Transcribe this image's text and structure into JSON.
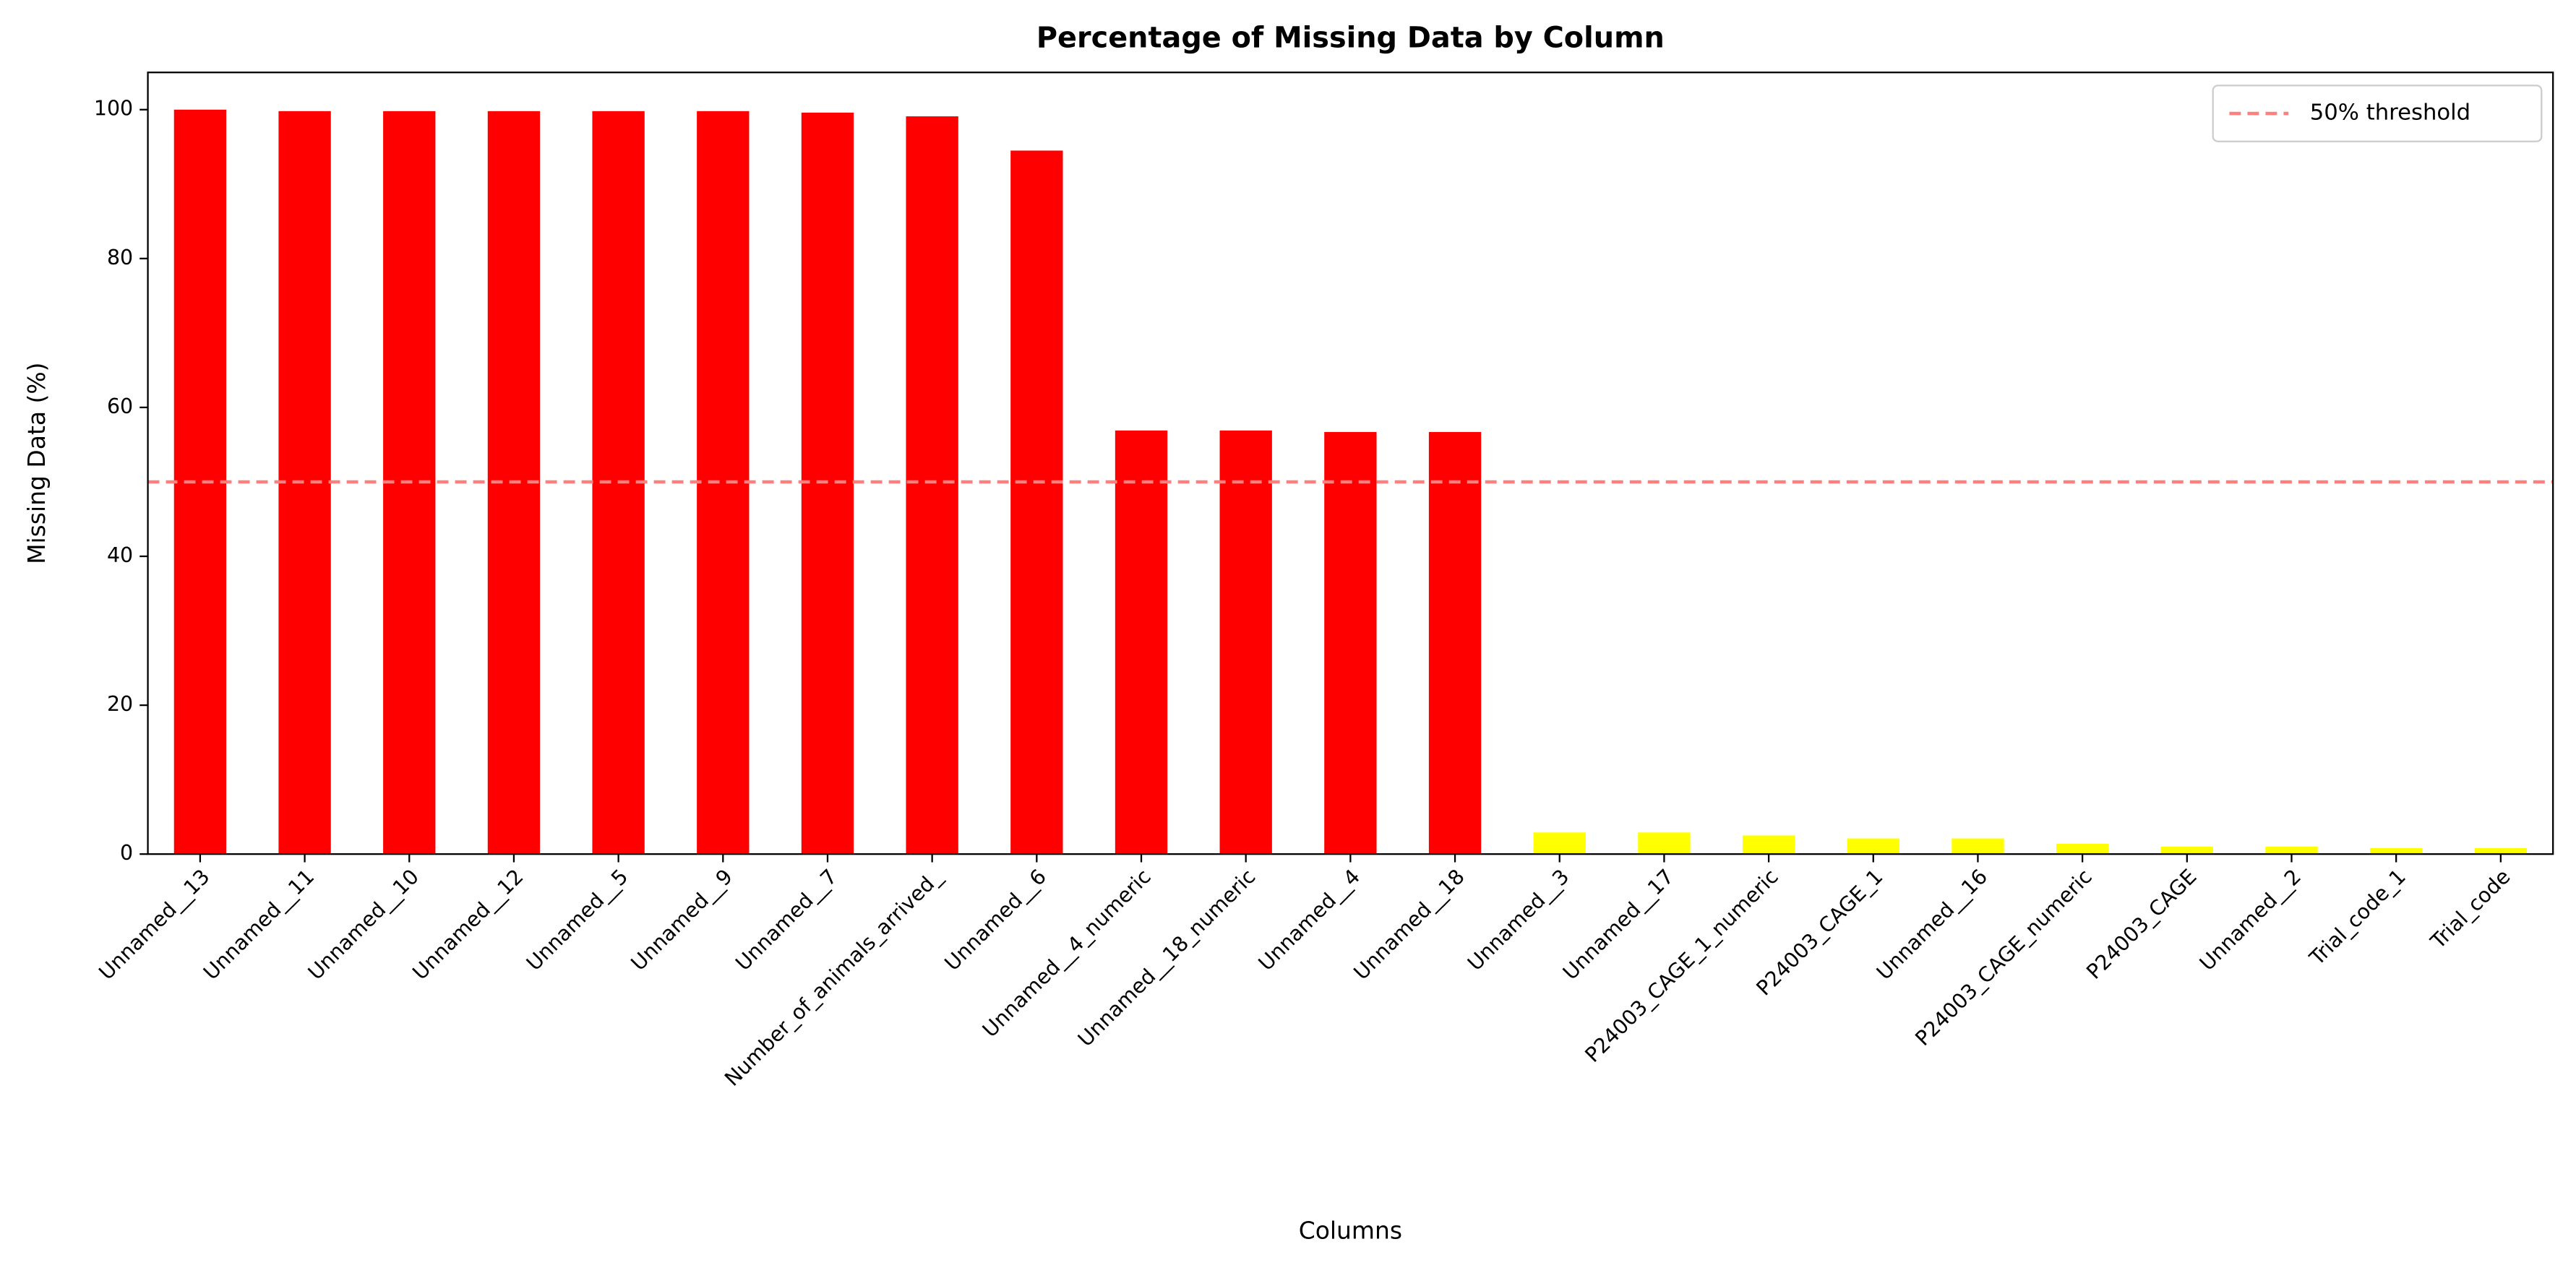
{
  "chart_data": {
    "type": "bar",
    "title": "Percentage of Missing Data by Column",
    "x_label": "Columns",
    "y_label": "Missing Data (%)",
    "categories": [
      "Unnamed__13",
      "Unnamed__11",
      "Unnamed__10",
      "Unnamed__12",
      "Unnamed__5",
      "Unnamed__9",
      "Unnamed__7",
      "Number_of_animals_arrived_",
      "Unnamed__6",
      "Unnamed__4_numeric",
      "Unnamed__18_numeric",
      "Unnamed__4",
      "Unnamed__18",
      "Unnamed__3",
      "Unnamed__17",
      "P24003_CAGE_1_numeric",
      "P24003_CAGE_1",
      "Unnamed__16",
      "P24003_CAGE_numeric",
      "P24003_CAGE",
      "Unnamed__2",
      "Trial_code_1",
      "Trial_code"
    ],
    "values": [
      100,
      99.8,
      99.8,
      99.8,
      99.8,
      99.8,
      99.6,
      99.1,
      94.5,
      56.9,
      56.9,
      56.7,
      56.7,
      2.9,
      2.9,
      2.5,
      2.1,
      2.1,
      1.4,
      1.0,
      1.0,
      0.8,
      0.8
    ],
    "colors": [
      "#ff0000",
      "#ff0000",
      "#ff0000",
      "#ff0000",
      "#ff0000",
      "#ff0000",
      "#ff0000",
      "#ff0000",
      "#ff0000",
      "#ff0000",
      "#ff0000",
      "#ff0000",
      "#ff0000",
      "#ffff00",
      "#ffff00",
      "#ffff00",
      "#ffff00",
      "#ffff00",
      "#ffff00",
      "#ffff00",
      "#ffff00",
      "#ffff00",
      "#ffff00"
    ],
    "ylim": [
      0,
      105
    ],
    "yticks": [
      0,
      20,
      40,
      60,
      80,
      100
    ],
    "threshold": {
      "value": 50,
      "label": "50% threshold",
      "color": "#ff7f7f"
    },
    "legend": "upper right",
    "grid": false
  }
}
